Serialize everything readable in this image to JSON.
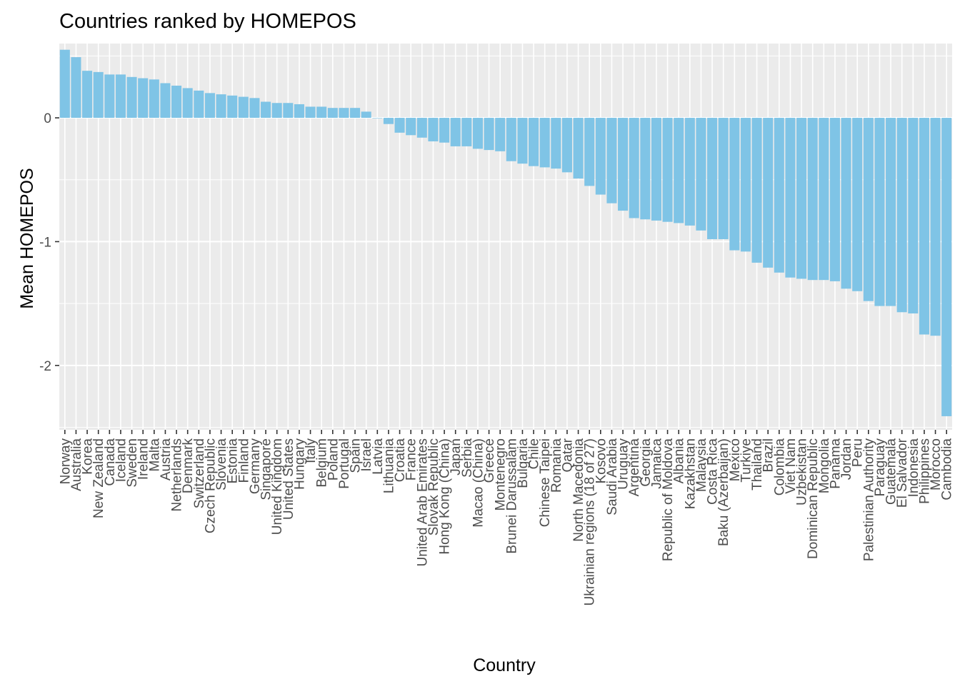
{
  "chart_data": {
    "type": "bar",
    "title": "Countries ranked by HOMEPOS",
    "xlabel": "Country",
    "ylabel": "Mean HOMEPOS",
    "ylim": [
      -2.52,
      0.6
    ],
    "yticks": [
      0,
      -1,
      -2
    ],
    "grid": true,
    "bar_color": "#7FC4E6",
    "panel_color": "#EBEBEB",
    "categories": [
      "Norway",
      "Australia",
      "Korea",
      "New Zealand",
      "Canada",
      "Iceland",
      "Sweden",
      "Ireland",
      "Malta",
      "Austria",
      "Netherlands",
      "Denmark",
      "Switzerland",
      "Czech Republic",
      "Slovenia",
      "Estonia",
      "Finland",
      "Germany",
      "Singapore",
      "United Kingdom",
      "United States",
      "Hungary",
      "Italy",
      "Belgium",
      "Poland",
      "Portugal",
      "Spain",
      "Israel",
      "Latvia",
      "Lithuania",
      "Croatia",
      "France",
      "United Arab Emirates",
      "Slovak Republic",
      "Hong Kong (China)",
      "Japan",
      "Serbia",
      "Macao (China)",
      "Greece",
      "Montenegro",
      "Brunei Darussalam",
      "Bulgaria",
      "Chile",
      "Chinese Taipei",
      "Romania",
      "Qatar",
      "North Macedonia",
      "Ukrainian regions (18 of 27)",
      "Kosovo",
      "Saudi Arabia",
      "Uruguay",
      "Argentina",
      "Georgia",
      "Jamaica",
      "Republic of Moldova",
      "Albania",
      "Kazakhstan",
      "Malaysia",
      "Costa Rica",
      "Baku (Azerbaijan)",
      "Mexico",
      "Turkiye",
      "Thailand",
      "Brazil",
      "Colombia",
      "Viet Nam",
      "Uzbekistan",
      "Dominican Republic",
      "Mongolia",
      "Panama",
      "Jordan",
      "Peru",
      "Palestinian Authority",
      "Paraguay",
      "Guatemala",
      "El Salvador",
      "Indonesia",
      "Philippines",
      "Morocco",
      "Cambodia"
    ],
    "values": [
      0.55,
      0.49,
      0.38,
      0.37,
      0.35,
      0.35,
      0.33,
      0.32,
      0.31,
      0.28,
      0.26,
      0.24,
      0.22,
      0.2,
      0.19,
      0.18,
      0.17,
      0.16,
      0.13,
      0.12,
      0.12,
      0.11,
      0.09,
      0.09,
      0.08,
      0.08,
      0.08,
      0.05,
      0.0,
      -0.05,
      -0.12,
      -0.14,
      -0.16,
      -0.19,
      -0.2,
      -0.23,
      -0.23,
      -0.25,
      -0.26,
      -0.27,
      -0.35,
      -0.37,
      -0.39,
      -0.4,
      -0.41,
      -0.44,
      -0.49,
      -0.55,
      -0.62,
      -0.69,
      -0.75,
      -0.81,
      -0.82,
      -0.83,
      -0.84,
      -0.85,
      -0.87,
      -0.91,
      -0.98,
      -0.98,
      -1.07,
      -1.08,
      -1.17,
      -1.21,
      -1.25,
      -1.29,
      -1.3,
      -1.31,
      -1.31,
      -1.32,
      -1.38,
      -1.4,
      -1.48,
      -1.52,
      -1.52,
      -1.57,
      -1.58,
      -1.75,
      -1.76,
      -2.41
    ]
  }
}
